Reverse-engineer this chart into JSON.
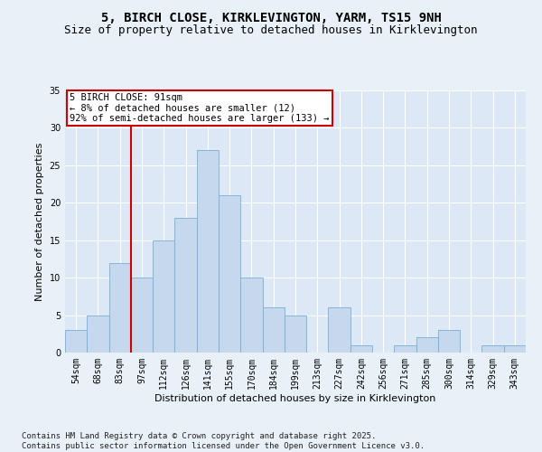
{
  "title_line1": "5, BIRCH CLOSE, KIRKLEVINGTON, YARM, TS15 9NH",
  "title_line2": "Size of property relative to detached houses in Kirklevington",
  "xlabel": "Distribution of detached houses by size in Kirklevington",
  "ylabel": "Number of detached properties",
  "categories": [
    "54sqm",
    "68sqm",
    "83sqm",
    "97sqm",
    "112sqm",
    "126sqm",
    "141sqm",
    "155sqm",
    "170sqm",
    "184sqm",
    "199sqm",
    "213sqm",
    "227sqm",
    "242sqm",
    "256sqm",
    "271sqm",
    "285sqm",
    "300sqm",
    "314sqm",
    "329sqm",
    "343sqm"
  ],
  "values": [
    3,
    5,
    12,
    10,
    15,
    18,
    27,
    21,
    10,
    6,
    5,
    0,
    6,
    1,
    0,
    1,
    2,
    3,
    0,
    1,
    1
  ],
  "bar_color": "#c5d8ed",
  "bar_edge_color": "#7bafd4",
  "background_color": "#dce8f5",
  "fig_background_color": "#e8f0f8",
  "grid_color": "#ffffff",
  "vline_color": "#cc0000",
  "vline_x": 2.5,
  "annotation_box_text": "5 BIRCH CLOSE: 91sqm\n← 8% of detached houses are smaller (12)\n92% of semi-detached houses are larger (133) →",
  "annotation_box_color": "#cc0000",
  "ylim": [
    0,
    35
  ],
  "yticks": [
    0,
    5,
    10,
    15,
    20,
    25,
    30,
    35
  ],
  "footnote": "Contains HM Land Registry data © Crown copyright and database right 2025.\nContains public sector information licensed under the Open Government Licence v3.0.",
  "title_fontsize": 10,
  "subtitle_fontsize": 9,
  "tick_fontsize": 7,
  "label_fontsize": 8,
  "footnote_fontsize": 6.5,
  "annotation_fontsize": 7.5
}
